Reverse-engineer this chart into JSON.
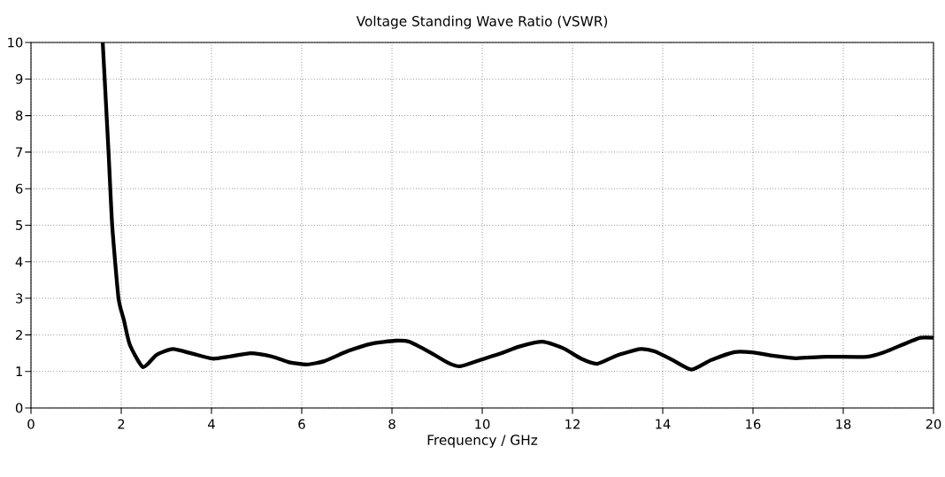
{
  "chart_data": {
    "type": "line",
    "title": "Voltage Standing Wave Ratio (VSWR)",
    "xlabel": "Frequency / GHz",
    "x": [
      1.59,
      1.72,
      1.8,
      1.94,
      2.06,
      2.19,
      2.48,
      2.78,
      3.14,
      3.56,
      4.02,
      4.41,
      4.87,
      5.33,
      5.72,
      6.11,
      6.5,
      7.03,
      7.55,
      8.07,
      8.39,
      8.86,
      9.25,
      9.51,
      9.97,
      10.43,
      10.82,
      11.34,
      11.8,
      12.19,
      12.55,
      12.97,
      13.5,
      13.82,
      14.22,
      14.64,
      15.07,
      15.59,
      15.98,
      16.5,
      16.96,
      17.61,
      18.53,
      18.92,
      19.31,
      19.71,
      20
    ],
    "series": [
      {
        "color": "#000000",
        "values": [
          10,
          6.97,
          4.99,
          3.0,
          2.4,
          1.73,
          1.12,
          1.45,
          1.61,
          1.49,
          1.35,
          1.41,
          1.5,
          1.41,
          1.25,
          1.19,
          1.28,
          1.56,
          1.76,
          1.84,
          1.81,
          1.51,
          1.23,
          1.14,
          1.32,
          1.5,
          1.68,
          1.81,
          1.63,
          1.35,
          1.21,
          1.43,
          1.61,
          1.55,
          1.31,
          1.05,
          1.31,
          1.53,
          1.52,
          1.42,
          1.36,
          1.4,
          1.4,
          1.53,
          1.73,
          1.92,
          1.92
        ]
      }
    ],
    "xlim": [
      0,
      20
    ],
    "ylim": [
      0,
      10
    ],
    "xticks": [
      0,
      2,
      4,
      6,
      8,
      10,
      12,
      14,
      16,
      18,
      20
    ],
    "yticks": [
      0,
      1,
      2,
      3,
      4,
      5,
      6,
      7,
      8,
      9,
      10
    ],
    "grid": true,
    "legend": false,
    "marker": "none",
    "line_style": "solid"
  }
}
